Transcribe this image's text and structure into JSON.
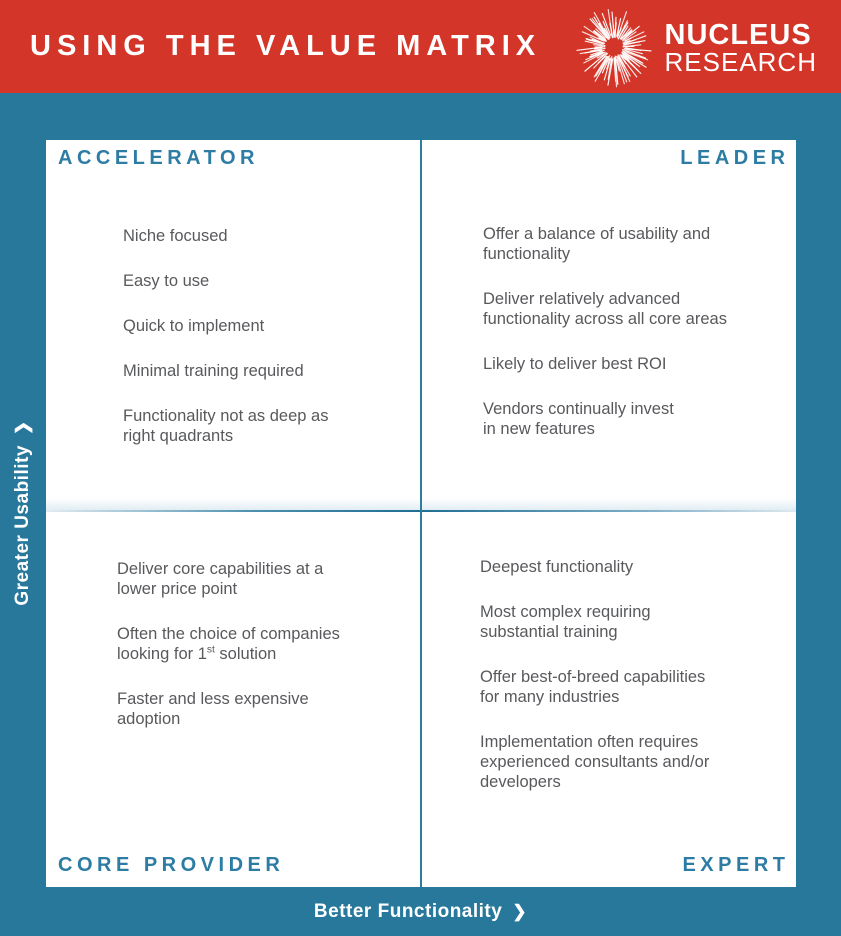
{
  "colors": {
    "header_bg": "#d43529",
    "page_bg": "#27789b",
    "panel_bg": "#ffffff",
    "accent_teal": "#2c7ca4",
    "divider": "#2e7da1",
    "body_text": "#58595c",
    "text_on_dark": "#ffffff"
  },
  "header": {
    "title": "USING THE VALUE MATRIX",
    "logo": {
      "line1": "NUCLEUS",
      "line2": "RESEARCH",
      "icon": "starburst-icon"
    }
  },
  "matrix": {
    "quadrants": [
      {
        "label": "ACCELERATOR",
        "items": [
          [
            "Niche focused"
          ],
          [
            "Easy to use"
          ],
          [
            "Quick to implement"
          ],
          [
            "Minimal training required"
          ],
          [
            "Functionality not as deep as",
            "right quadrants"
          ]
        ]
      },
      {
        "label": "LEADER",
        "items": [
          [
            "Offer a balance of usability and",
            "functionality"
          ],
          [
            "Deliver relatively advanced",
            "functionality across all core areas"
          ],
          [
            "Likely to deliver best ROI"
          ],
          [
            "Vendors continually invest",
            "in new features"
          ]
        ]
      },
      {
        "label": "CORE PROVIDER",
        "items": [
          [
            "Deliver core capabilities at a",
            "lower price point"
          ],
          [
            "Often the choice of companies",
            {
              "pre": "looking for 1",
              "sup": "st",
              "post": " solution"
            }
          ],
          [
            "Faster and less expensive",
            "adoption"
          ]
        ]
      },
      {
        "label": "EXPERT",
        "items": [
          [
            "Deepest functionality"
          ],
          [
            "Most complex requiring",
            "substantial training"
          ],
          [
            "Offer best-of-breed capabilities",
            "for many industries"
          ],
          [
            "Implementation often requires",
            "experienced consultants and/or",
            "developers"
          ]
        ]
      }
    ]
  },
  "axes": {
    "y_label": "Greater Usability",
    "x_label": "Better Functionality",
    "arrow": "❯"
  }
}
